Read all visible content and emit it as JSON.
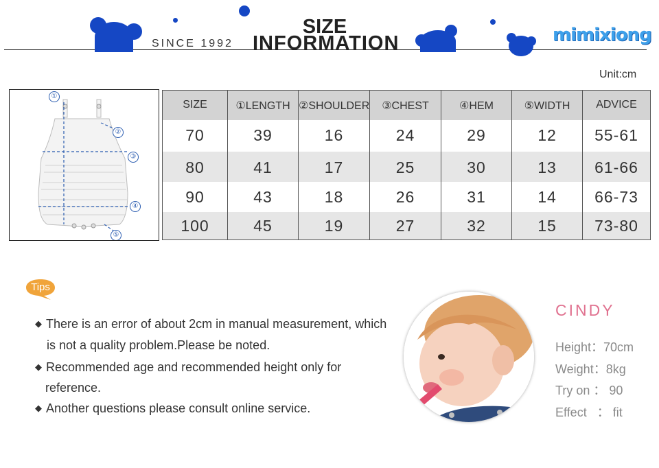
{
  "header": {
    "since": "SINCE 1992",
    "title_line1": "SIZE",
    "title_line2": "INFORMATION",
    "logo": "mimixiong"
  },
  "unit": "Unit:cm",
  "diagram": {
    "markers": [
      "①",
      "②",
      "③",
      "④",
      "⑤"
    ]
  },
  "table": {
    "headers": [
      "SIZE",
      "①LENGTH",
      "②SHOULDER",
      "③CHEST",
      "④HEM",
      "⑤WIDTH",
      "ADVICE"
    ],
    "rows": [
      [
        "70",
        "39",
        "16",
        "24",
        "29",
        "12",
        "55-61"
      ],
      [
        "80",
        "41",
        "17",
        "25",
        "30",
        "13",
        "61-66"
      ],
      [
        "90",
        "43",
        "18",
        "26",
        "31",
        "14",
        "66-73"
      ],
      [
        "100",
        "45",
        "19",
        "27",
        "32",
        "15",
        "73-80"
      ]
    ]
  },
  "tips": {
    "badge": "Tips",
    "items": [
      {
        "line1": "There is an error of about 2cm in manual measurement, which",
        "line2": "is not a quality problem.Please be noted."
      },
      {
        "line1": "Recommended age and recommended height only for",
        "line2": "reference."
      },
      {
        "line1": "Another questions please consult online service.",
        "line2": ""
      }
    ]
  },
  "model": {
    "name": "CINDY",
    "height": "Height：70cm",
    "weight": "Weight：8kg",
    "try_on": "Try on ： 90",
    "effect": "Effect   ： fit"
  },
  "colors": {
    "brand_blue": "#1547c4",
    "logo_blue": "#3da0ea",
    "tips_orange": "#f0a43a",
    "model_pink": "#e0718f"
  }
}
